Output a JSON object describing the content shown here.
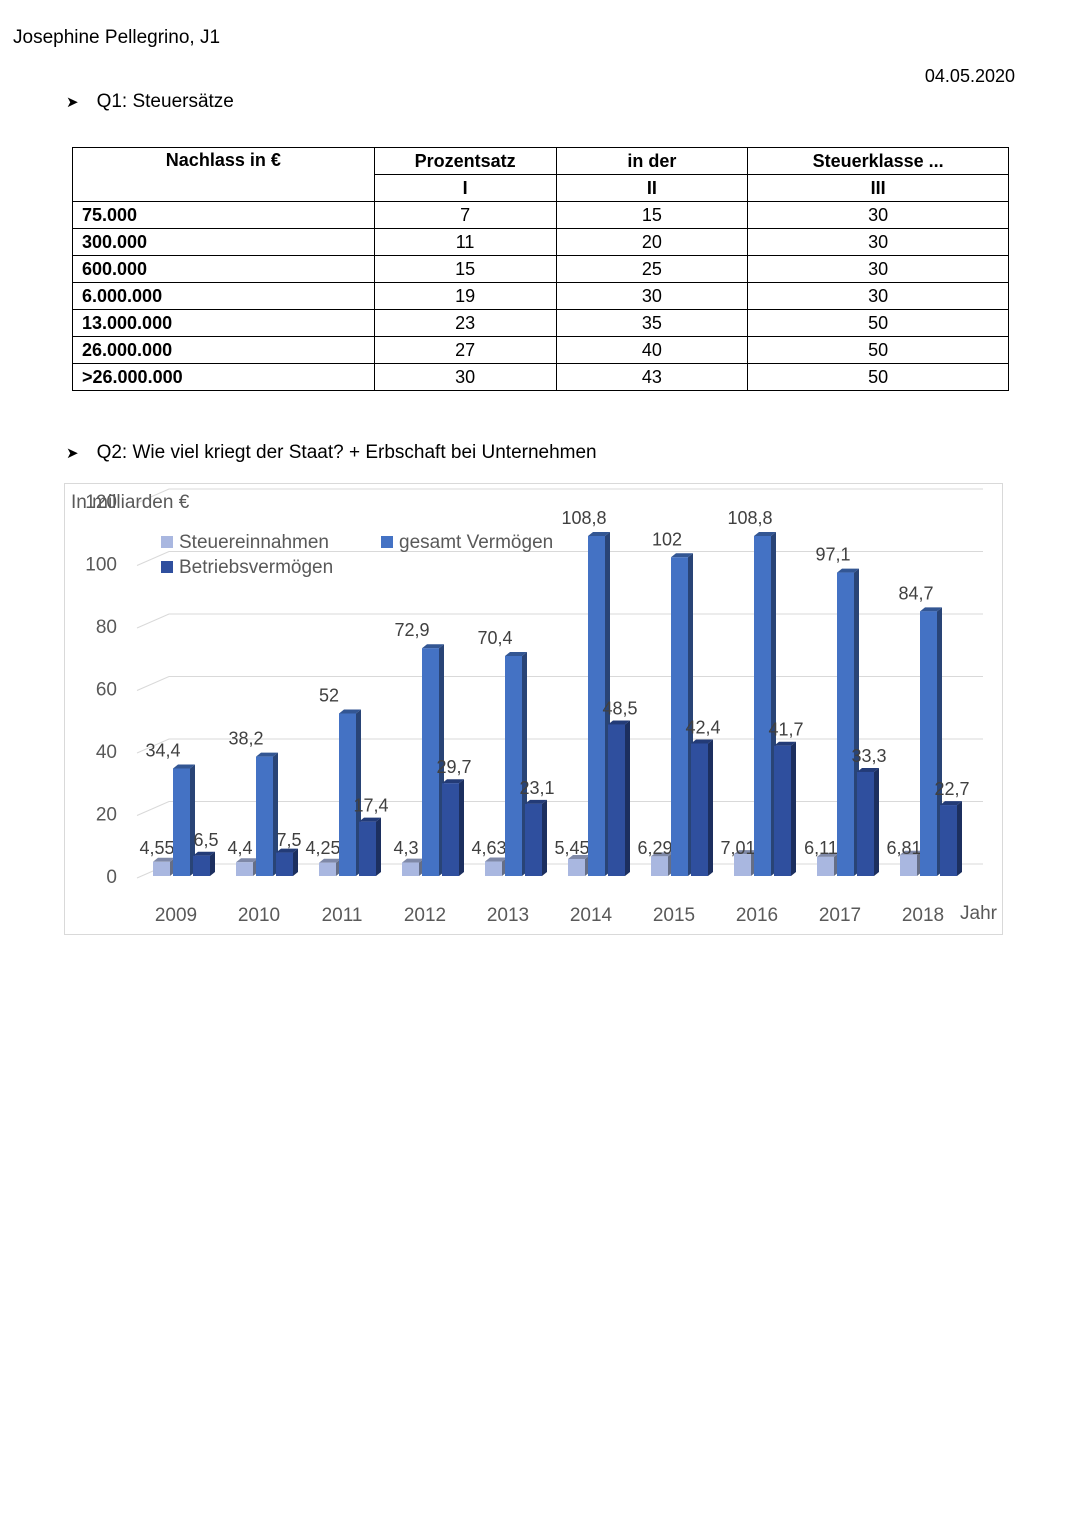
{
  "header": {
    "author": "Josephine Pellegrino, J1",
    "date": "04.05.2020"
  },
  "q1": {
    "heading": "Q1: Steuersätze",
    "table": {
      "col_header": "Nachlass in €",
      "group_headers": [
        "Prozentsatz",
        "in der",
        "Steuerklasse ..."
      ],
      "class_labels": [
        "I",
        "II",
        "III"
      ],
      "rows": [
        {
          "nachlass": "75.000",
          "i": "7",
          "ii": "15",
          "iii": "30"
        },
        {
          "nachlass": "300.000",
          "i": "11",
          "ii": "20",
          "iii": "30"
        },
        {
          "nachlass": "600.000",
          "i": "15",
          "ii": "25",
          "iii": "30"
        },
        {
          "nachlass": "6.000.000",
          "i": "19",
          "ii": "30",
          "iii": "30"
        },
        {
          "nachlass": "13.000.000",
          "i": "23",
          "ii": "35",
          "iii": "50"
        },
        {
          "nachlass": "26.000.000",
          "i": "27",
          "ii": "40",
          "iii": "50"
        },
        {
          "nachlass": ">26.000.000",
          "i": "30",
          "ii": "43",
          "iii": "50"
        }
      ]
    }
  },
  "q2": {
    "heading": "Q2: Wie viel kriegt der Staat? + Erbschaft bei Unternehmen"
  },
  "chart_data": {
    "type": "bar",
    "ylabel": "In milliarden €",
    "xlabel": "Jahr",
    "ylim": [
      0,
      120
    ],
    "yticks": [
      0,
      20,
      40,
      60,
      80,
      100,
      120
    ],
    "categories": [
      "2009",
      "2010",
      "2011",
      "2012",
      "2013",
      "2014",
      "2015",
      "2016",
      "2017",
      "2018"
    ],
    "series": [
      {
        "name": "Steuereinnahmen",
        "color": "#a9b7e0",
        "values": [
          4.55,
          4.4,
          4.25,
          4.3,
          4.63,
          5.45,
          6.29,
          7.01,
          6.11,
          6.81
        ],
        "labels": [
          "4,55",
          "4,4",
          "4,25",
          "4,3",
          "4,63",
          "5,45",
          "6,29",
          "7,01",
          "6,11",
          "6,81"
        ]
      },
      {
        "name": "gesamt Vermögen",
        "color": "#4472c4",
        "values": [
          34.4,
          38.2,
          52,
          72.9,
          70.4,
          108.8,
          102,
          108.8,
          97.1,
          84.7
        ],
        "labels": [
          "34,4",
          "38,2",
          "52",
          "72,9",
          "70,4",
          "108,8",
          "102",
          "108,8",
          "97,1",
          "84,7"
        ]
      },
      {
        "name": "Betriebsvermögen",
        "color": "#2f4f9e",
        "values": [
          6.5,
          7.5,
          17.4,
          29.7,
          23.1,
          48.5,
          42.4,
          41.7,
          33.3,
          22.7
        ],
        "labels": [
          "6,5",
          "7,5",
          "17,4",
          "29,7",
          "23,1",
          "48,5",
          "42,4",
          "41,7",
          "33,3",
          "22,7"
        ]
      }
    ],
    "legend": "top-left",
    "grid": true
  }
}
